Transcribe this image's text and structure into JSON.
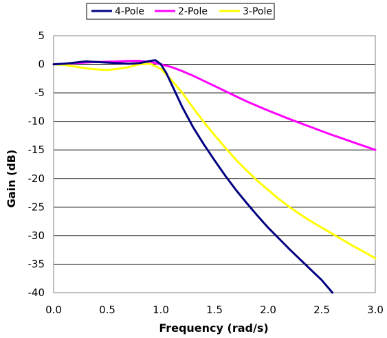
{
  "chart_data": {
    "type": "line",
    "xlabel": "Frequency (rad/s)",
    "ylabel": "Gain (dB)",
    "xlim": [
      0,
      3
    ],
    "ylim": [
      -40,
      5
    ],
    "x_ticks": [
      "0.0",
      "0.5",
      "1.0",
      "1.5",
      "2.0",
      "2.5",
      "3.0"
    ],
    "y_ticks": [
      "5",
      "0",
      "-5",
      "-10",
      "-15",
      "-20",
      "-25",
      "-30",
      "-35",
      "-40"
    ],
    "grid": "horizontal",
    "legend_position": "top",
    "series": [
      {
        "name": "4-Pole",
        "color": "#000080",
        "points": [
          [
            0.0,
            0.0
          ],
          [
            0.1,
            0.1
          ],
          [
            0.2,
            0.3
          ],
          [
            0.3,
            0.5
          ],
          [
            0.4,
            0.4
          ],
          [
            0.5,
            0.3
          ],
          [
            0.6,
            0.2
          ],
          [
            0.7,
            0.1
          ],
          [
            0.8,
            0.2
          ],
          [
            0.9,
            0.6
          ],
          [
            0.95,
            0.7
          ],
          [
            1.0,
            0.0
          ],
          [
            1.05,
            -1.5
          ],
          [
            1.1,
            -3.5
          ],
          [
            1.2,
            -7.5
          ],
          [
            1.3,
            -11.0
          ],
          [
            1.4,
            -14.0
          ],
          [
            1.5,
            -16.8
          ],
          [
            1.6,
            -19.5
          ],
          [
            1.7,
            -22.0
          ],
          [
            1.8,
            -24.3
          ],
          [
            1.9,
            -26.5
          ],
          [
            2.0,
            -28.6
          ],
          [
            2.1,
            -30.5
          ],
          [
            2.2,
            -32.4
          ],
          [
            2.3,
            -34.2
          ],
          [
            2.4,
            -36.0
          ],
          [
            2.5,
            -37.8
          ],
          [
            2.6,
            -40.0
          ]
        ]
      },
      {
        "name": "2-Pole",
        "color": "#ff00ff",
        "points": [
          [
            0.0,
            0.0
          ],
          [
            0.2,
            0.2
          ],
          [
            0.4,
            0.4
          ],
          [
            0.6,
            0.5
          ],
          [
            0.7,
            0.6
          ],
          [
            0.8,
            0.6
          ],
          [
            0.9,
            0.4
          ],
          [
            1.0,
            0.0
          ],
          [
            1.1,
            -0.5
          ],
          [
            1.2,
            -1.2
          ],
          [
            1.3,
            -2.0
          ],
          [
            1.4,
            -2.9
          ],
          [
            1.5,
            -3.8
          ],
          [
            1.6,
            -4.7
          ],
          [
            1.8,
            -6.5
          ],
          [
            2.0,
            -8.1
          ],
          [
            2.2,
            -9.6
          ],
          [
            2.4,
            -11.0
          ],
          [
            2.6,
            -12.4
          ],
          [
            2.8,
            -13.7
          ],
          [
            3.0,
            -15.0
          ]
        ]
      },
      {
        "name": "3-Pole",
        "color": "#ffff00",
        "points": [
          [
            0.0,
            0.0
          ],
          [
            0.1,
            -0.1
          ],
          [
            0.2,
            -0.4
          ],
          [
            0.3,
            -0.7
          ],
          [
            0.4,
            -0.9
          ],
          [
            0.5,
            -1.0
          ],
          [
            0.6,
            -0.8
          ],
          [
            0.7,
            -0.5
          ],
          [
            0.8,
            0.0
          ],
          [
            0.9,
            0.1
          ],
          [
            1.0,
            -0.8
          ],
          [
            1.1,
            -2.8
          ],
          [
            1.2,
            -5.0
          ],
          [
            1.3,
            -7.6
          ],
          [
            1.4,
            -10.1
          ],
          [
            1.5,
            -12.4
          ],
          [
            1.6,
            -14.6
          ],
          [
            1.7,
            -16.7
          ],
          [
            1.8,
            -18.6
          ],
          [
            1.9,
            -20.4
          ],
          [
            2.0,
            -22.0
          ],
          [
            2.1,
            -23.6
          ],
          [
            2.2,
            -25.0
          ],
          [
            2.3,
            -26.3
          ],
          [
            2.4,
            -27.5
          ],
          [
            2.5,
            -28.6
          ],
          [
            2.6,
            -29.7
          ],
          [
            2.7,
            -30.8
          ],
          [
            2.8,
            -31.9
          ],
          [
            2.9,
            -32.9
          ],
          [
            3.0,
            -34.0
          ]
        ]
      }
    ]
  }
}
